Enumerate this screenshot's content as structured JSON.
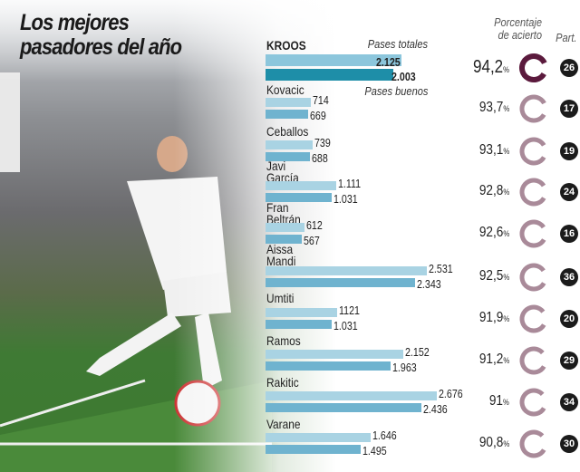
{
  "chart_data": {
    "type": "bar",
    "title": "Los mejores pasadores del año",
    "legend": {
      "total": "Pases totales",
      "good": "Pases buenos"
    },
    "pct_header": "Porcentaje de acierto",
    "matches_header": "Part.",
    "categories": [
      "KROOS",
      "Kovacic",
      "Ceballos",
      "Javi\nGarcía",
      "Fran\nBeltrán",
      "Aissa\nMandi",
      "Umtiti",
      "Ramos",
      "Rakitic",
      "Varane"
    ],
    "series": [
      {
        "name": "Pases totales",
        "values": [
          2125,
          714,
          739,
          1111,
          612,
          2531,
          1121,
          2152,
          2676,
          1646
        ],
        "labels": [
          "2.125",
          "714",
          "739",
          "1.111",
          "612",
          "2.531",
          "1121",
          "2.152",
          "2.676",
          "1.646"
        ]
      },
      {
        "name": "Pases buenos",
        "values": [
          2003,
          669,
          688,
          1031,
          567,
          2343,
          1031,
          1963,
          2436,
          1495
        ],
        "labels": [
          "2.003",
          "669",
          "688",
          "1.031",
          "567",
          "2.343",
          "1.031",
          "1.963",
          "2.436",
          "1.495"
        ]
      }
    ],
    "accuracy_pct": [
      "94,2",
      "93,7",
      "93,1",
      "92,8",
      "92,6",
      "92,5",
      "91,9",
      "91,2",
      "91",
      "90,8"
    ],
    "matches": [
      "26",
      "17",
      "19",
      "24",
      "16",
      "36",
      "20",
      "29",
      "34",
      "30"
    ],
    "colors": {
      "total": "#a9d3e3",
      "good": "#6fb3cf",
      "highlight_total": "#8cc6dc",
      "highlight_good": "#1e8ea8",
      "ring_highlight": "#5b1a3d",
      "ring": "#a98a99",
      "badge": "#1b1b1b"
    }
  },
  "pct_symbol": "%"
}
